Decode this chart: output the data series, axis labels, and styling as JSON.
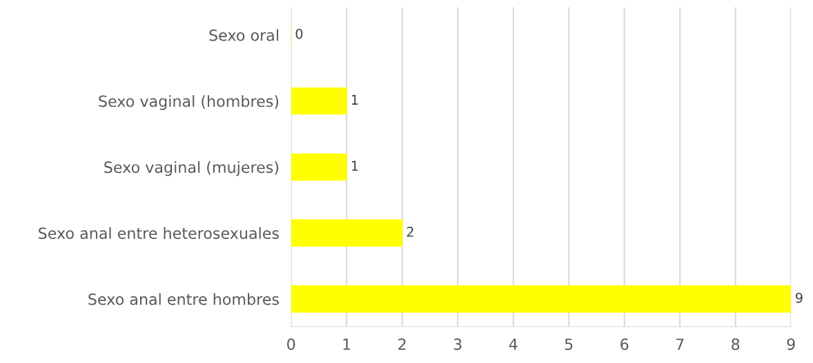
{
  "chart_data": {
    "type": "bar",
    "orientation": "horizontal",
    "categories": [
      "Sexo oral",
      "Sexo vaginal (hombres)",
      "Sexo vaginal (mujeres)",
      "Sexo anal entre heterosexuales",
      "Sexo anal entre hombres"
    ],
    "values": [
      0,
      1,
      1,
      2,
      9
    ],
    "color": "#ffff00",
    "xlim": [
      0,
      9
    ],
    "xticks": [
      0,
      1,
      2,
      3,
      4,
      5,
      6,
      7,
      8,
      9
    ],
    "grid": "x",
    "data_labels": true
  }
}
